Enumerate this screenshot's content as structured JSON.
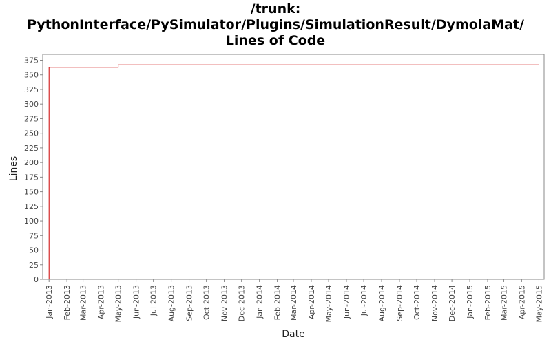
{
  "chart_data": {
    "type": "line",
    "title_lines": [
      "/trunk:",
      "PythonInterface/PySimulator/Plugins/SimulationResult/DymolaMat/",
      "Lines of Code"
    ],
    "xlabel": "Date",
    "ylabel": "Lines",
    "ylim": [
      0,
      385
    ],
    "yticks": [
      0,
      25,
      50,
      75,
      100,
      125,
      150,
      175,
      200,
      225,
      250,
      275,
      300,
      325,
      350,
      375
    ],
    "xlim": [
      "2012-12-21",
      "2015-05-10"
    ],
    "xtick_labels": [
      "Jan-2013",
      "Feb-2013",
      "Mar-2013",
      "Apr-2013",
      "May-2013",
      "Jun-2013",
      "Jul-2013",
      "Aug-2013",
      "Sep-2013",
      "Oct-2013",
      "Nov-2013",
      "Dec-2013",
      "Jan-2014",
      "Feb-2014",
      "Mar-2014",
      "Apr-2014",
      "May-2014",
      "Jun-2014",
      "Jul-2014",
      "Aug-2014",
      "Sep-2014",
      "Oct-2014",
      "Nov-2014",
      "Dec-2014",
      "Jan-2015",
      "Feb-2015",
      "Mar-2015",
      "Apr-2015",
      "May-2015"
    ],
    "xtick_dates": [
      "2013-01-01",
      "2013-02-01",
      "2013-03-01",
      "2013-04-01",
      "2013-05-01",
      "2013-06-01",
      "2013-07-01",
      "2013-08-01",
      "2013-09-01",
      "2013-10-01",
      "2013-11-01",
      "2013-12-01",
      "2014-01-01",
      "2014-02-01",
      "2014-03-01",
      "2014-04-01",
      "2014-05-01",
      "2014-06-01",
      "2014-07-01",
      "2014-08-01",
      "2014-09-01",
      "2014-10-01",
      "2014-11-01",
      "2014-12-01",
      "2015-01-01",
      "2015-02-01",
      "2015-03-01",
      "2015-04-01",
      "2015-05-01"
    ],
    "series": [
      {
        "color": "#cc0000",
        "step": true,
        "x": [
          "2013-01-01",
          "2013-01-01",
          "2013-05-01",
          "2015-05-01",
          "2015-05-01"
        ],
        "y": [
          0,
          363,
          367,
          367,
          0
        ]
      }
    ],
    "grid": false
  }
}
